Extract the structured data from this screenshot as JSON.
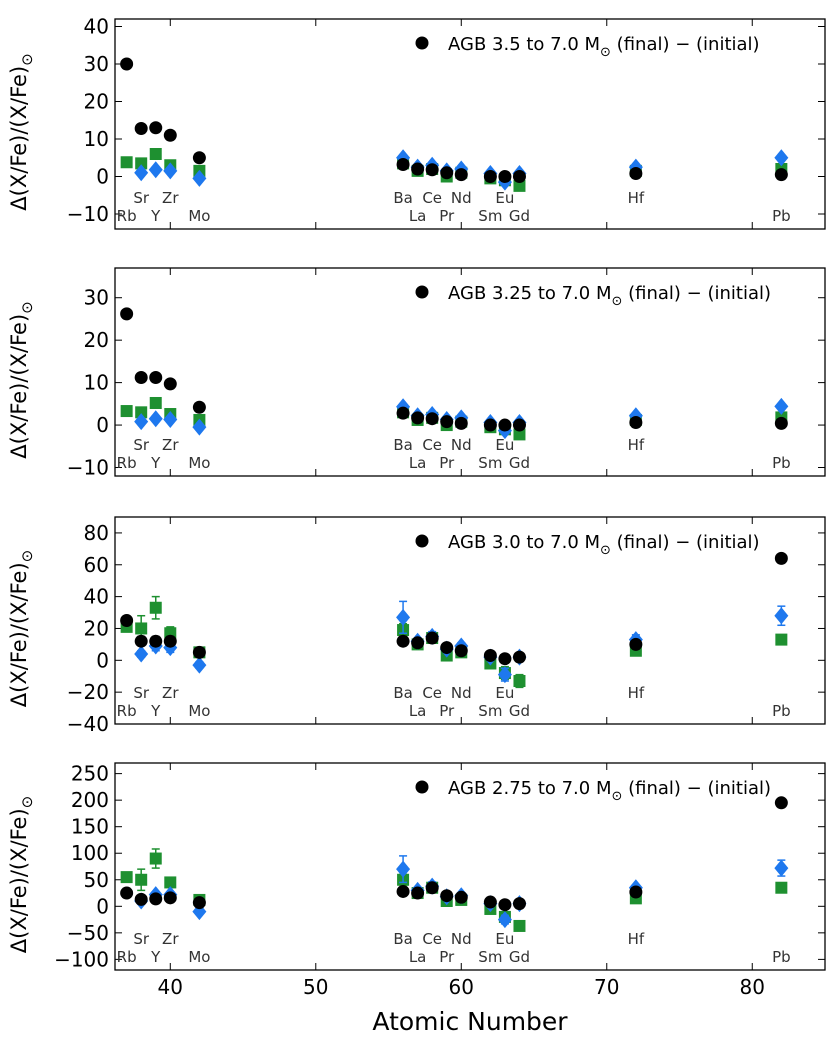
{
  "figure": {
    "xlabel": "Atomic Number",
    "ylabel": "Δ(X/Fe)/(X/Fe)",
    "ylabel_sub": "⊙",
    "xlim": [
      36.2,
      85
    ],
    "xticks": [
      40,
      50,
      60,
      70,
      80
    ],
    "colors": {
      "circle": "#000000",
      "square": "#1e9030",
      "diamond": "#1e78ee"
    }
  },
  "chart_data": [
    {
      "type": "scatter",
      "legend": {
        "marker": "circle",
        "label": "AGB 3.5 to 7.0 M⊙ (final) − (initial)",
        "pre": "AGB 3.5 to 7.0 M",
        "sub": "⊙",
        "post": " (final) − (initial)"
      },
      "ylim": [
        -14,
        42
      ],
      "yticks": [
        -10,
        0,
        10,
        20,
        30,
        40
      ],
      "elements": [
        {
          "sym": "Rb",
          "z": 37,
          "row": "low"
        },
        {
          "sym": "Sr",
          "z": 38,
          "row": "high"
        },
        {
          "sym": "Y",
          "z": 39,
          "row": "low"
        },
        {
          "sym": "Zr",
          "z": 40,
          "row": "high"
        },
        {
          "sym": "Mo",
          "z": 42,
          "row": "low"
        },
        {
          "sym": "Ba",
          "z": 56,
          "row": "high"
        },
        {
          "sym": "La",
          "z": 57,
          "row": "low"
        },
        {
          "sym": "Ce",
          "z": 58,
          "row": "high"
        },
        {
          "sym": "Pr",
          "z": 59,
          "row": "low"
        },
        {
          "sym": "Nd",
          "z": 60,
          "row": "high"
        },
        {
          "sym": "Sm",
          "z": 62,
          "row": "low"
        },
        {
          "sym": "Eu",
          "z": 63,
          "row": "high"
        },
        {
          "sym": "Gd",
          "z": 64,
          "row": "low"
        },
        {
          "sym": "Hf",
          "z": 72,
          "row": "high"
        },
        {
          "sym": "Pb",
          "z": 82,
          "row": "low"
        }
      ],
      "series": [
        {
          "marker": "square",
          "x": [
            37,
            38,
            39,
            40,
            42,
            56,
            57,
            58,
            59,
            60,
            62,
            63,
            64,
            72,
            82
          ],
          "y": [
            3.8,
            3.5,
            6,
            3,
            1.5,
            3.5,
            1.5,
            2,
            0,
            1,
            -0.5,
            -1,
            -2.5,
            1.5,
            2
          ]
        },
        {
          "marker": "diamond",
          "x": [
            38,
            39,
            40,
            42,
            56,
            57,
            58,
            59,
            60,
            62,
            63,
            64,
            72,
            82
          ],
          "y": [
            1,
            1.8,
            1.5,
            -0.5,
            5,
            2.5,
            3,
            1.5,
            2,
            0.8,
            -1.5,
            0.8,
            2.5,
            5
          ]
        },
        {
          "marker": "circle",
          "x": [
            37,
            38,
            39,
            40,
            42,
            56,
            57,
            58,
            59,
            60,
            62,
            63,
            64,
            72,
            82
          ],
          "y": [
            30,
            12.8,
            13,
            11,
            5,
            3.2,
            2,
            1.8,
            1,
            0.5,
            0,
            0,
            0,
            0.8,
            0.5
          ]
        }
      ]
    },
    {
      "type": "scatter",
      "legend": {
        "marker": "circle",
        "label": "AGB 3.25 to 7.0 M⊙ (final) − (initial)",
        "pre": "AGB 3.25 to 7.0 M",
        "sub": "⊙",
        "post": " (final) − (initial)"
      },
      "ylim": [
        -12,
        37
      ],
      "yticks": [
        -10,
        0,
        10,
        20,
        30
      ],
      "elements": [
        {
          "sym": "Rb",
          "z": 37,
          "row": "low"
        },
        {
          "sym": "Sr",
          "z": 38,
          "row": "high"
        },
        {
          "sym": "Y",
          "z": 39,
          "row": "low"
        },
        {
          "sym": "Zr",
          "z": 40,
          "row": "high"
        },
        {
          "sym": "Mo",
          "z": 42,
          "row": "low"
        },
        {
          "sym": "Ba",
          "z": 56,
          "row": "high"
        },
        {
          "sym": "La",
          "z": 57,
          "row": "low"
        },
        {
          "sym": "Ce",
          "z": 58,
          "row": "high"
        },
        {
          "sym": "Pr",
          "z": 59,
          "row": "low"
        },
        {
          "sym": "Nd",
          "z": 60,
          "row": "high"
        },
        {
          "sym": "Sm",
          "z": 62,
          "row": "low"
        },
        {
          "sym": "Eu",
          "z": 63,
          "row": "high"
        },
        {
          "sym": "Gd",
          "z": 64,
          "row": "low"
        },
        {
          "sym": "Hf",
          "z": 72,
          "row": "high"
        },
        {
          "sym": "Pb",
          "z": 82,
          "row": "low"
        }
      ],
      "series": [
        {
          "marker": "square",
          "x": [
            37,
            38,
            39,
            40,
            42,
            56,
            57,
            58,
            59,
            60,
            62,
            63,
            64,
            72,
            82
          ],
          "y": [
            3.3,
            3,
            5.2,
            2.6,
            1.2,
            3,
            1.2,
            1.7,
            0,
            0.8,
            -0.5,
            -1,
            -2.2,
            1.2,
            1.8
          ]
        },
        {
          "marker": "diamond",
          "x": [
            38,
            39,
            40,
            42,
            56,
            57,
            58,
            59,
            60,
            62,
            63,
            64,
            72,
            82
          ],
          "y": [
            0.8,
            1.5,
            1.3,
            -0.5,
            4.3,
            2.2,
            2.5,
            1.3,
            1.7,
            0.6,
            -1.3,
            0.6,
            2.2,
            4.4
          ]
        },
        {
          "marker": "circle",
          "x": [
            37,
            38,
            39,
            40,
            42,
            56,
            57,
            58,
            59,
            60,
            62,
            63,
            64,
            72,
            82
          ],
          "y": [
            26.2,
            11.2,
            11.2,
            9.7,
            4.2,
            2.8,
            1.7,
            1.5,
            0.8,
            0.4,
            0,
            0,
            0,
            0.6,
            0.4
          ]
        }
      ]
    },
    {
      "type": "scatter",
      "legend": {
        "marker": "circle",
        "label": "AGB 3.0 to 7.0 M⊙ (final) − (initial)",
        "pre": "AGB 3.0 to 7.0 M",
        "sub": "⊙",
        "post": " (final) − (initial)"
      },
      "ylim": [
        -40,
        90
      ],
      "yticks": [
        -40,
        -20,
        0,
        20,
        40,
        60,
        80
      ],
      "elements": [
        {
          "sym": "Rb",
          "z": 37,
          "row": "low"
        },
        {
          "sym": "Sr",
          "z": 38,
          "row": "high"
        },
        {
          "sym": "Y",
          "z": 39,
          "row": "low"
        },
        {
          "sym": "Zr",
          "z": 40,
          "row": "high"
        },
        {
          "sym": "Mo",
          "z": 42,
          "row": "low"
        },
        {
          "sym": "Ba",
          "z": 56,
          "row": "high"
        },
        {
          "sym": "La",
          "z": 57,
          "row": "low"
        },
        {
          "sym": "Ce",
          "z": 58,
          "row": "high"
        },
        {
          "sym": "Pr",
          "z": 59,
          "row": "low"
        },
        {
          "sym": "Nd",
          "z": 60,
          "row": "high"
        },
        {
          "sym": "Sm",
          "z": 62,
          "row": "low"
        },
        {
          "sym": "Eu",
          "z": 63,
          "row": "high"
        },
        {
          "sym": "Gd",
          "z": 64,
          "row": "low"
        },
        {
          "sym": "Hf",
          "z": 72,
          "row": "high"
        },
        {
          "sym": "Pb",
          "z": 82,
          "row": "low"
        }
      ],
      "series": [
        {
          "marker": "square",
          "x": [
            37,
            38,
            39,
            40,
            42,
            56,
            57,
            58,
            59,
            60,
            62,
            63,
            64,
            72,
            82
          ],
          "y": [
            21,
            20,
            33,
            17,
            5,
            19,
            10,
            14,
            3,
            5,
            -2,
            -8,
            -13,
            6,
            13
          ],
          "err": [
            2,
            8,
            7,
            4,
            2,
            4,
            2,
            2,
            2,
            2,
            2,
            4,
            4,
            3,
            2
          ]
        },
        {
          "marker": "diamond",
          "x": [
            38,
            39,
            40,
            42,
            56,
            57,
            58,
            59,
            60,
            62,
            63,
            64,
            72,
            82
          ],
          "y": [
            4,
            9,
            8,
            -3,
            27,
            12,
            15,
            7,
            9,
            2,
            -9,
            2,
            13,
            28
          ],
          "err": [
            2,
            3,
            3,
            2,
            10,
            2,
            3,
            2,
            2,
            2,
            4,
            2,
            3,
            6
          ]
        },
        {
          "marker": "circle",
          "x": [
            37,
            38,
            39,
            40,
            42,
            56,
            57,
            58,
            59,
            60,
            62,
            63,
            64,
            72,
            82
          ],
          "y": [
            25,
            12,
            12,
            12,
            5,
            12,
            11,
            14,
            8,
            6,
            3,
            1,
            2,
            10,
            64
          ]
        }
      ]
    },
    {
      "type": "scatter",
      "legend": {
        "marker": "circle",
        "label": "AGB 2.75 to 7.0 M⊙ (final) − (initial)",
        "pre": "AGB 2.75 to 7.0 M",
        "sub": "⊙",
        "post": " (final) − (initial)"
      },
      "ylim": [
        -120,
        270
      ],
      "yticks": [
        -100,
        -50,
        0,
        50,
        100,
        150,
        200,
        250
      ],
      "elements": [
        {
          "sym": "Rb",
          "z": 37,
          "row": "low"
        },
        {
          "sym": "Sr",
          "z": 38,
          "row": "high"
        },
        {
          "sym": "Y",
          "z": 39,
          "row": "low"
        },
        {
          "sym": "Zr",
          "z": 40,
          "row": "high"
        },
        {
          "sym": "Mo",
          "z": 42,
          "row": "low"
        },
        {
          "sym": "Ba",
          "z": 56,
          "row": "high"
        },
        {
          "sym": "La",
          "z": 57,
          "row": "low"
        },
        {
          "sym": "Ce",
          "z": 58,
          "row": "high"
        },
        {
          "sym": "Pr",
          "z": 59,
          "row": "low"
        },
        {
          "sym": "Nd",
          "z": 60,
          "row": "high"
        },
        {
          "sym": "Sm",
          "z": 62,
          "row": "low"
        },
        {
          "sym": "Eu",
          "z": 63,
          "row": "high"
        },
        {
          "sym": "Gd",
          "z": 64,
          "row": "low"
        },
        {
          "sym": "Hf",
          "z": 72,
          "row": "high"
        },
        {
          "sym": "Pb",
          "z": 82,
          "row": "low"
        }
      ],
      "series": [
        {
          "marker": "square",
          "x": [
            37,
            38,
            39,
            40,
            42,
            56,
            57,
            58,
            59,
            60,
            62,
            63,
            64,
            72,
            82
          ],
          "y": [
            55,
            50,
            90,
            45,
            12,
            50,
            25,
            35,
            10,
            12,
            -5,
            -20,
            -37,
            15,
            35
          ],
          "err": [
            5,
            20,
            18,
            5,
            5,
            10,
            5,
            5,
            3,
            3,
            3,
            8,
            8,
            5,
            5
          ]
        },
        {
          "marker": "diamond",
          "x": [
            38,
            39,
            40,
            42,
            56,
            57,
            58,
            59,
            60,
            62,
            63,
            64,
            72,
            82
          ],
          "y": [
            10,
            22,
            22,
            -10,
            70,
            30,
            38,
            18,
            20,
            5,
            -25,
            5,
            35,
            72
          ],
          "err": [
            5,
            5,
            5,
            5,
            25,
            5,
            8,
            5,
            5,
            3,
            8,
            3,
            5,
            15
          ]
        },
        {
          "marker": "circle",
          "x": [
            37,
            38,
            39,
            40,
            42,
            56,
            57,
            58,
            59,
            60,
            62,
            63,
            64,
            72,
            82
          ],
          "y": [
            25,
            13,
            14,
            16,
            7,
            28,
            25,
            35,
            20,
            17,
            8,
            3,
            5,
            27,
            195
          ]
        }
      ]
    }
  ]
}
